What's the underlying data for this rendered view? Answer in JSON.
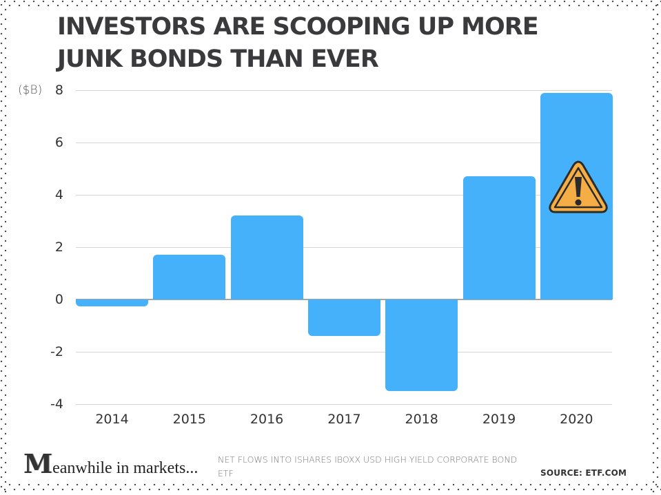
{
  "title": "INVESTORS ARE SCOOPING UP MORE JUNK BONDS THAN EVER",
  "title_lines": [
    "INVESTORS ARE SCOOPING UP MORE",
    "JUNK BONDS THAN EVER"
  ],
  "unit_label": "($B)",
  "y_ticks": [
    "8",
    "6",
    "4",
    "2",
    "0",
    "-2",
    "-4"
  ],
  "x_ticks": [
    "2014",
    "2015",
    "2016",
    "2017",
    "2018",
    "2019",
    "2020"
  ],
  "warning_icon": "warning-triangle-icon",
  "footer": {
    "brand_initial": "M",
    "brand_rest": "eanwhile in markets...",
    "subtitle": "NET FLOWS INTO ISHARES IBOXX USD HIGH YIELD CORPORATE BOND ETF",
    "source": "SOURCE:  ETF.COM"
  },
  "colors": {
    "bar": "#46b1fb",
    "title": "#3a3a3c",
    "warning_fill": "#f5ad46",
    "warning_stroke": "#2b2b2b"
  },
  "chart_data": {
    "type": "bar",
    "title": "INVESTORS ARE SCOOPING UP MORE JUNK BONDS THAN EVER",
    "subtitle": "NET FLOWS INTO ISHARES IBOXX USD HIGH YIELD CORPORATE BOND ETF",
    "source": "SOURCE: ETF.COM",
    "categories": [
      "2014",
      "2015",
      "2016",
      "2017",
      "2018",
      "2019",
      "2020"
    ],
    "values": [
      -0.25,
      1.7,
      3.2,
      -1.4,
      -3.5,
      4.7,
      7.9
    ],
    "xlabel": "",
    "ylabel": "($B)",
    "ylim": [
      -4,
      8
    ],
    "yticks": [
      -4,
      -2,
      0,
      2,
      4,
      6,
      8
    ],
    "grid": true,
    "legend": null,
    "annotations": [
      {
        "type": "warning-icon",
        "category": "2020"
      }
    ]
  }
}
